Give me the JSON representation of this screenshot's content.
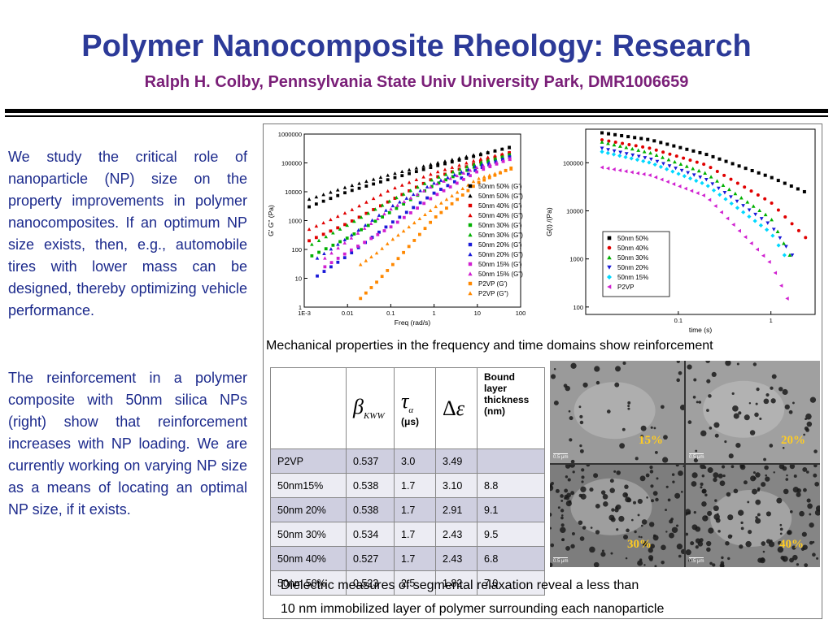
{
  "title": "Polymer Nanocomposite Rheology: Research",
  "subtitle": "Ralph H. Colby, Pennsylvania State Univ University Park, DMR1006659",
  "left_text": {
    "para1": "We study the critical role of nanoparticle (NP) size on the property improvements in polymer nanocomposites. If an optimum NP size exists, then, e.g., automobile tires with lower mass can be designed, thereby optimizing vehicle performance.",
    "para2": "The reinforcement in a polymer composite with 50nm silica NPs (right) show that reinforcement increases with NP loading. We are currently working on varying NP size as a means of locating an optimal NP size, if it exists."
  },
  "mechanical_caption": "Mechanical properties in the frequency and time domains show reinforcement",
  "dielectric_caption": {
    "line1": "Dielectric measures of segmental relaxation reveal a less than",
    "line2": "10 nm immobilized layer of polymer surrounding each nanoparticle"
  },
  "table": {
    "headers": [
      "",
      "βKWW",
      "τα (μs)",
      "Δε",
      "Bound layer thickness (nm)"
    ],
    "header_unit": "(μs)",
    "header_bound": [
      "Bound",
      "layer",
      "thickness",
      "(nm)"
    ],
    "rows": [
      [
        "P2VP",
        "0.537",
        "3.0",
        "3.49",
        ""
      ],
      [
        "50nm15%",
        "0.538",
        "1.7",
        "3.10",
        "8.8"
      ],
      [
        "50nm 20%",
        "0.538",
        "1.7",
        "2.91",
        "9.1"
      ],
      [
        "50nm 30%",
        "0.534",
        "1.7",
        "2.43",
        "9.5"
      ],
      [
        "50nm 40%",
        "0.527",
        "1.7",
        "2.43",
        "6.8"
      ],
      [
        "50nm 50%",
        "0.523",
        "2.5",
        "1.82",
        "7.0"
      ]
    ]
  },
  "tem_images": [
    {
      "label": "15%",
      "scale": "0.5 μm"
    },
    {
      "label": "20%",
      "scale": "0.5 μm"
    },
    {
      "label": "30%",
      "scale": "0.5 μm"
    },
    {
      "label": "40%",
      "scale": "0.5 μm"
    }
  ],
  "chart_data": [
    {
      "type": "scatter",
      "xlabel": "Freq (rad/s)",
      "ylabel": "G' G\" (Pa)",
      "x_scale": "log",
      "y_scale": "log",
      "xlim": [
        0.001,
        100
      ],
      "ylim": [
        1,
        1000000
      ],
      "x_ticks": [
        "1E-3",
        "0.01",
        "0.1",
        "1",
        "10",
        "100"
      ],
      "y_ticks": [
        "1",
        "10",
        "100",
        "1000",
        "10000",
        "100000",
        "1000000"
      ],
      "legend_position": "right",
      "series": [
        {
          "name": "50nm 50% (G')",
          "color": "#000000",
          "marker": "square",
          "x": [
            0.0013,
            0.01,
            0.1,
            1,
            10,
            80
          ],
          "y": [
            3000,
            10000,
            28000,
            75000,
            180000,
            400000
          ]
        },
        {
          "name": "50nm 50% (G\")",
          "color": "#000000",
          "marker": "triangle",
          "x": [
            0.0013,
            0.01,
            0.1,
            1,
            10,
            80
          ],
          "y": [
            5500,
            15000,
            40000,
            95000,
            200000,
            380000
          ]
        },
        {
          "name": "50nm 40% (G')",
          "color": "#e00000",
          "marker": "square",
          "x": [
            0.0013,
            0.01,
            0.1,
            1,
            10,
            80
          ],
          "y": [
            200,
            800,
            5000,
            30000,
            100000,
            270000
          ]
        },
        {
          "name": "50nm 40% (G\")",
          "color": "#e00000",
          "marker": "triangle",
          "x": [
            0.0013,
            0.01,
            0.1,
            1,
            10,
            80
          ],
          "y": [
            500,
            2000,
            12000,
            45000,
            130000,
            260000
          ]
        },
        {
          "name": "50nm 30% (G')",
          "color": "#00b000",
          "marker": "square",
          "x": [
            0.0015,
            0.01,
            0.1,
            1,
            10,
            80
          ],
          "y": [
            60,
            250,
            2000,
            17000,
            80000,
            230000
          ]
        },
        {
          "name": "50nm 30% (G\")",
          "color": "#00b000",
          "marker": "triangle",
          "x": [
            0.0015,
            0.01,
            0.1,
            1,
            10,
            80
          ],
          "y": [
            150,
            700,
            5000,
            28000,
            100000,
            220000
          ]
        },
        {
          "name": "50nm 20% (G')",
          "color": "#1a1ad8",
          "marker": "square",
          "x": [
            0.002,
            0.01,
            0.1,
            1,
            10,
            80
          ],
          "y": [
            12,
            60,
            800,
            9000,
            60000,
            200000
          ]
        },
        {
          "name": "50nm 20% (G\")",
          "color": "#1a1ad8",
          "marker": "triangle",
          "x": [
            0.002,
            0.01,
            0.1,
            1,
            10,
            80
          ],
          "y": [
            50,
            250,
            3000,
            20000,
            80000,
            180000
          ]
        },
        {
          "name": "50nm 15% (G')",
          "color": "#d020d0",
          "marker": "square",
          "x": [
            0.003,
            0.01,
            0.1,
            1,
            10,
            80
          ],
          "y": [
            25,
            80,
            600,
            7000,
            50000,
            170000
          ]
        },
        {
          "name": "50nm 15% (G\")",
          "color": "#d020d0",
          "marker": "triangle",
          "x": [
            0.003,
            0.01,
            0.1,
            1,
            10,
            80
          ],
          "y": [
            50,
            200,
            2500,
            17000,
            70000,
            150000
          ]
        },
        {
          "name": "P2VP (G')",
          "color": "#ff8800",
          "marker": "square",
          "x": [
            0.02,
            0.05,
            0.1,
            1,
            10,
            80
          ],
          "y": [
            2,
            8,
            25,
            1200,
            20000,
            80000
          ]
        },
        {
          "name": "P2VP (G\")",
          "color": "#ff8800",
          "marker": "triangle",
          "x": [
            0.02,
            0.05,
            0.1,
            1,
            10,
            80
          ],
          "y": [
            30,
            80,
            200,
            2800,
            28000,
            70000
          ]
        }
      ]
    },
    {
      "type": "scatter",
      "xlabel": "time (s)",
      "ylabel": "G(t) /(Pa)",
      "x_scale": "log",
      "y_scale": "log",
      "xlim": [
        0.01,
        3
      ],
      "ylim": [
        70,
        500000
      ],
      "x_ticks": [
        "0.1",
        "1"
      ],
      "y_ticks": [
        "100",
        "1000",
        "10000",
        "100000"
      ],
      "legend_position": "bottom-center",
      "series": [
        {
          "name": "50nm 50%",
          "color": "#000000",
          "marker": "square",
          "x": [
            0.015,
            0.05,
            0.2,
            1,
            2.3
          ],
          "y": [
            420000,
            300000,
            150000,
            50000,
            25000
          ]
        },
        {
          "name": "50nm 40%",
          "color": "#e00000",
          "marker": "circle",
          "x": [
            0.015,
            0.05,
            0.2,
            1,
            2.8
          ],
          "y": [
            300000,
            200000,
            90000,
            15000,
            2000
          ]
        },
        {
          "name": "50nm 30%",
          "color": "#00b000",
          "marker": "triangle",
          "x": [
            0.015,
            0.05,
            0.2,
            1,
            1.6
          ],
          "y": [
            270000,
            160000,
            60000,
            7000,
            1200
          ]
        },
        {
          "name": "50nm 20%",
          "color": "#1a1ad8",
          "marker": "triangle-down",
          "x": [
            0.015,
            0.05,
            0.2,
            1,
            1.7
          ],
          "y": [
            200000,
            120000,
            45000,
            5000,
            1200
          ]
        },
        {
          "name": "50nm 15%",
          "color": "#00d8ff",
          "marker": "diamond",
          "x": [
            0.015,
            0.05,
            0.2,
            1,
            1.4
          ],
          "y": [
            170000,
            100000,
            35000,
            3500,
            1200
          ]
        },
        {
          "name": "P2VP",
          "color": "#d020d0",
          "marker": "triangle-left",
          "x": [
            0.015,
            0.05,
            0.2,
            1,
            1.5
          ],
          "y": [
            80000,
            55000,
            20000,
            800,
            150
          ]
        }
      ]
    }
  ]
}
